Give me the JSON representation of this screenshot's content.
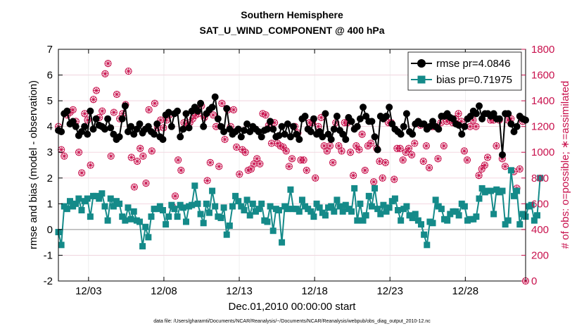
{
  "chart_data": {
    "type": "line",
    "title_line1": "Southern Hemisphere",
    "title_line2": "SAT_U_WIND_COMPONENT @ 400 hPa",
    "xlabel": "Dec.01,2010 00:00:00 start",
    "ylabel_left": "rmse and bias (model - observation)",
    "ylabel_right": "# of obs: o=possible; ∗=assimilated",
    "footnote": "data file: /Users/gharamti/Documents/NCAR/Reanalysis/~/Documents/NCAR/Reanalysis/webpub/obs_diag_output_2010-12.nc",
    "xlim": [
      1,
      32
    ],
    "ylim_left": [
      -2,
      7
    ],
    "ylim_right": [
      0,
      1800
    ],
    "x_ticks": [
      3,
      8,
      13,
      18,
      23,
      28
    ],
    "x_tick_labels": [
      "12/03",
      "12/08",
      "12/13",
      "12/18",
      "12/23",
      "12/28"
    ],
    "y_ticks_left": [
      -2,
      -1,
      0,
      1,
      2,
      3,
      4,
      5,
      6,
      7
    ],
    "y_tick_labels_left": [
      "-2",
      "-1",
      "0",
      "1",
      "2",
      "3",
      "4",
      "5",
      "6",
      "7"
    ],
    "y_ticks_right": [
      0,
      200,
      400,
      600,
      800,
      1000,
      1200,
      1400,
      1600,
      1800
    ],
    "y_tick_labels_right": [
      "0",
      "200",
      "400",
      "600",
      "800",
      "1000",
      "1200",
      "1400",
      "1600",
      "1800"
    ],
    "legend": [
      "rmse pr=4.0846",
      "bias pr=0.71975"
    ],
    "legend_location": "top-right",
    "colors": {
      "rmse": "#000000",
      "bias": "#148a89",
      "obs": "#c8104c",
      "zero_line": "#b3b3b3"
    },
    "series": [
      {
        "name": "rmse",
        "values": [
          3.85,
          3.8,
          4.5,
          4.6,
          4.1,
          4.2,
          4.0,
          3.65,
          3.8,
          4.0,
          3.7,
          4.6,
          3.9,
          4.3,
          4.05,
          4.0,
          3.9,
          4.3,
          3.95,
          3.7,
          3.5,
          3.6,
          4.3,
          4.8,
          3.8,
          4.0,
          3.7,
          3.9,
          4.1,
          3.75,
          3.9,
          4.0,
          3.8,
          3.7,
          4.1,
          3.6,
          3.5,
          4.45,
          4.55,
          4.0,
          4.5,
          4.6,
          3.6,
          3.9,
          4.5,
          3.95,
          4.6,
          4.75,
          4.6,
          4.9,
          4.0,
          4.5,
          4.65,
          4.75,
          5.15,
          4.3,
          4.0,
          3.8,
          4.7,
          3.9,
          3.7,
          3.8,
          3.9,
          3.6,
          3.85,
          4.1,
          3.8,
          4.0,
          3.9,
          3.8,
          3.6,
          3.85,
          3.9,
          4.2,
          3.9,
          3.6,
          3.65,
          4.0,
          3.7,
          4.1,
          3.6,
          4.0,
          3.7,
          3.5,
          4.3,
          4.4,
          3.9,
          3.8,
          4.3,
          3.7,
          3.8,
          3.6,
          4.5,
          3.7,
          3.5,
          3.9,
          4.4,
          3.85,
          3.7,
          3.5,
          4.35,
          4.2,
          3.9,
          4.0,
          4.3,
          4.75,
          4.4,
          4.2,
          4.2,
          3.6,
          3.1,
          4.4,
          4.3,
          4.4,
          4.75,
          4.1,
          3.9,
          3.8,
          3.7,
          4.0,
          4.5,
          3.8,
          3.7,
          4.1,
          4.2,
          4.1,
          4.1,
          3.9,
          4.0,
          4.2,
          4.0,
          3.9,
          4.4,
          4.4,
          4.5,
          4.35,
          4.3,
          4.1,
          4.05,
          3.7,
          4.0,
          4.3,
          4.4,
          4.6,
          4.5,
          4.8,
          4.3,
          4.5,
          4.5,
          4.4,
          4.5,
          4.3,
          4.3,
          2.9,
          4.5,
          4.5,
          4.1,
          3.8,
          4.0,
          4.4,
          4.3,
          4.25
        ]
      },
      {
        "name": "bias",
        "values": [
          -0.1,
          -0.6,
          0.9,
          0.8,
          1.1,
          0.9,
          1.0,
          1.2,
          0.75,
          1.1,
          1.2,
          0.5,
          1.3,
          1.3,
          1.2,
          1.4,
          0.9,
          0.35,
          1.2,
          0.9,
          1.1,
          1.0,
          0.5,
          0.35,
          0.85,
          0.4,
          0.7,
          0.35,
          0.3,
          -0.65,
          0.1,
          -0.3,
          0.5,
          0.8,
          0.8,
          0.9,
          0.75,
          0.2,
          0.5,
          0.95,
          0.8,
          0.5,
          0.95,
          0.85,
          0.3,
          0.9,
          0.95,
          1.7,
          1.0,
          0.6,
          0.25,
          1.0,
          0.65,
          1.5,
          0.9,
          0.5,
          0.45,
          0.85,
          -0.2,
          0.15,
          0.9,
          1.3,
          1.1,
          0.9,
          0.75,
          1.15,
          0.55,
          1.0,
          0.7,
          0.8,
          1.0,
          0.35,
          0.3,
          0.9,
          -0.05,
          0.8,
          0.75,
          -0.5,
          0.9,
          0.8,
          1.55,
          0.8,
          0.8,
          0.7,
          1.15,
          0.9,
          0.8,
          0.7,
          0.5,
          1.0,
          0.85,
          0.65,
          0.55,
          0.85,
          0.9,
          0.7,
          1.15,
          0.9,
          0.7,
          0.95,
          0.8,
          0.7,
          1.6,
          0.35,
          1.0,
          0.35,
          0.55,
          1.3,
          0.9,
          1.6,
          0.8,
          0.6,
          0.95,
          0.7,
          0.85,
          1.1,
          1.2,
          0.75,
          0.35,
          0.8,
          0.9,
          0.55,
          0.45,
          0.6,
          0.35,
          0.2,
          -0.2,
          -0.6,
          0.3,
          0.25,
          1.15,
          0.9,
          0.8,
          0.4,
          0.35,
          0.6,
          0.7,
          0.7,
          0.55,
          1.0,
          0.9,
          0.35,
          0.4,
          0.4,
          0.5,
          1.2,
          1.6,
          1.45,
          1.5,
          1.5,
          0.6,
          1.55,
          1.45,
          1.5,
          0.2,
          0.35,
          2.3,
          1.3,
          1.5,
          0.2,
          0.6,
          0.5,
          0.9,
          0.95,
          0.35,
          0.55,
          2.0
        ]
      }
    ],
    "obs_possible": [
      1200,
      1020,
      970,
      1290,
      1310,
      1330,
      1240,
      1000,
      840,
      1300,
      1250,
      900,
      1410,
      1480,
      1270,
      1320,
      1610,
      1690,
      970,
      1310,
      1450,
      1260,
      1300,
      1370,
      1630,
      960,
      730,
      930,
      1030,
      970,
      760,
      1330,
      1010,
      1380,
      1190,
      1250,
      1190,
      1250,
      1290,
      580,
      660,
      940,
      860,
      1230,
      1200,
      1230,
      1260,
      1290,
      1300,
      1360,
      1270,
      780,
      920,
      1290,
      1200,
      890,
      1380,
      1100,
      1330,
      1200,
      1330,
      1040,
      830,
      1020,
      1000,
      860,
      870,
      910,
      950,
      910,
      1300,
      1290,
      1210,
      1070,
      1230,
      1070,
      1050,
      1040,
      1010,
      890,
      950,
      1200,
      1150,
      940,
      940,
      860,
      1230,
      1230,
      800,
      1200,
      1270,
      1050,
      1010,
      1050,
      920,
      1230,
      1050,
      1010,
      1230,
      1230,
      1000,
      820,
      1050,
      1020,
      1140,
      860,
      1050,
      1070,
      770,
      1030,
      930,
      800,
      920,
      1230,
      1230,
      790,
      1030,
      1030,
      940,
      1000,
      1030,
      980,
      1070,
      1230,
      1210,
      930,
      1050,
      880,
      1200,
      1200,
      950,
      1230,
      1050,
      1240,
      1250,
      1230,
      1260,
      1300,
      1240,
      1010,
      940,
      1200,
      1250,
      1200,
      820,
      870,
      900,
      960,
      1250,
      1250,
      1050,
      1250,
      950,
      890,
      1250,
      1260,
      850,
      720,
      870,
      1240,
      0
    ]
  }
}
